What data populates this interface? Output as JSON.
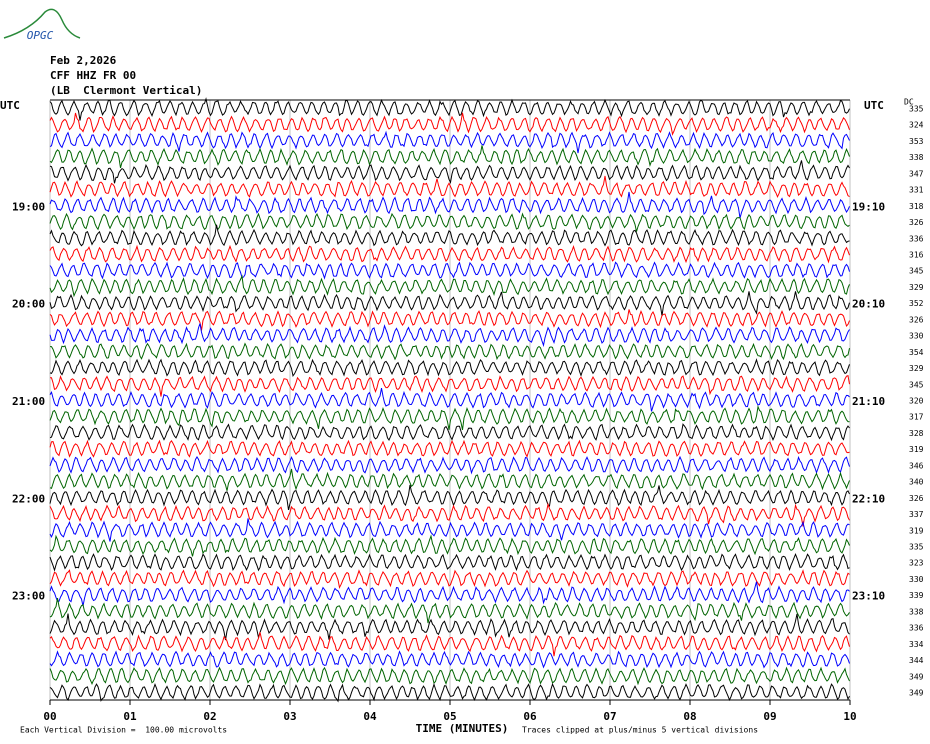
{
  "chart_data": {
    "type": "helicorder",
    "logo": "OPGC",
    "date": "Feb 2,2026",
    "station": "CFF HHZ FR 00",
    "location": "(LB  Clermont Vertical)",
    "left_header": "UTC",
    "right_header": "UTC",
    "dc_header": "DC",
    "xlabel": "TIME (MINUTES)",
    "xlim": [
      0,
      10
    ],
    "xticks": [
      {
        "value": 0,
        "label": "00"
      },
      {
        "value": 1,
        "label": "01"
      },
      {
        "value": 2,
        "label": "02"
      },
      {
        "value": 3,
        "label": "03"
      },
      {
        "value": 4,
        "label": "04"
      },
      {
        "value": 5,
        "label": "05"
      },
      {
        "value": 6,
        "label": "06"
      },
      {
        "value": 7,
        "label": "07"
      },
      {
        "value": 8,
        "label": "08"
      },
      {
        "value": 9,
        "label": "09"
      },
      10
    ],
    "grid": true,
    "trace_colors": [
      "#000000",
      "#ff0000",
      "#0000ff",
      "#006400"
    ],
    "rows": [
      {
        "dc": 335
      },
      {
        "dc": 324
      },
      {
        "dc": 353
      },
      {
        "dc": 338
      },
      {
        "dc": 347
      },
      {
        "dc": 331
      },
      {
        "dc": 318,
        "left": "19:00",
        "right": "19:10"
      },
      {
        "dc": 326
      },
      {
        "dc": 336
      },
      {
        "dc": 316
      },
      {
        "dc": 345
      },
      {
        "dc": 329
      },
      {
        "dc": 352,
        "left": "20:00",
        "right": "20:10"
      },
      {
        "dc": 326
      },
      {
        "dc": 330
      },
      {
        "dc": 354
      },
      {
        "dc": 329
      },
      {
        "dc": 345
      },
      {
        "dc": 320,
        "left": "21:00",
        "right": "21:10"
      },
      {
        "dc": 317
      },
      {
        "dc": 328
      },
      {
        "dc": 319
      },
      {
        "dc": 346
      },
      {
        "dc": 340
      },
      {
        "dc": 326,
        "left": "22:00",
        "right": "22:10"
      },
      {
        "dc": 337
      },
      {
        "dc": 319
      },
      {
        "dc": 335
      },
      {
        "dc": 323
      },
      {
        "dc": 330
      },
      {
        "dc": 339,
        "left": "23:00",
        "right": "23:10"
      },
      {
        "dc": 338
      },
      {
        "dc": 336
      },
      {
        "dc": 334
      },
      {
        "dc": 344
      },
      {
        "dc": 349
      },
      {
        "dc": 349
      }
    ],
    "scale_note": "Each Vertical Division =  100.00 microvolts",
    "clip_note": "Traces clipped at plus/minus 5 vertical divisions"
  }
}
